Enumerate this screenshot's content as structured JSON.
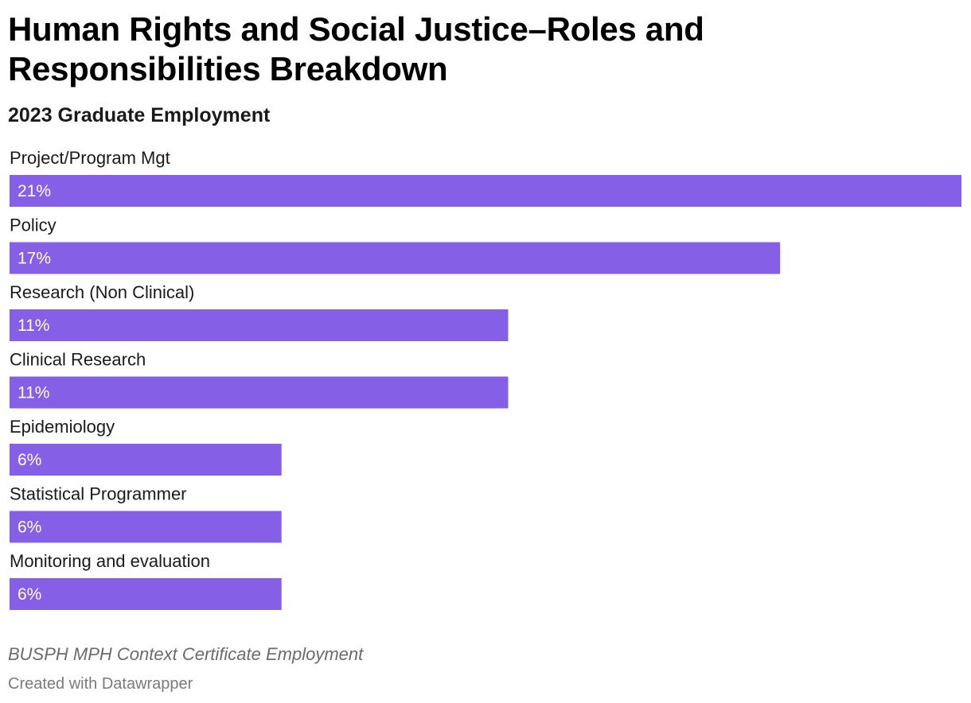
{
  "chart_data": {
    "type": "bar",
    "orientation": "horizontal",
    "title": "Human Rights and Social Justice–Roles and Responsibilities Breakdown",
    "subtitle": "2023 Graduate Employment",
    "categories": [
      "Project/Program Mgt",
      "Policy",
      "Research (Non Clinical)",
      "Clinical Research",
      "Epidemiology",
      "Statistical Programmer",
      "Monitoring and evaluation"
    ],
    "values": [
      21,
      17,
      11,
      11,
      6,
      6,
      6
    ],
    "value_labels": [
      "21%",
      "17%",
      "11%",
      "11%",
      "6%",
      "6%",
      "6%"
    ],
    "unit": "%",
    "xlim": [
      0,
      21
    ],
    "xlabel": "",
    "ylabel": "",
    "grid": false,
    "bar_color": "#8560e6",
    "notes": "BUSPH MPH Context Certificate Employment",
    "credit": "Created with Datawrapper"
  }
}
